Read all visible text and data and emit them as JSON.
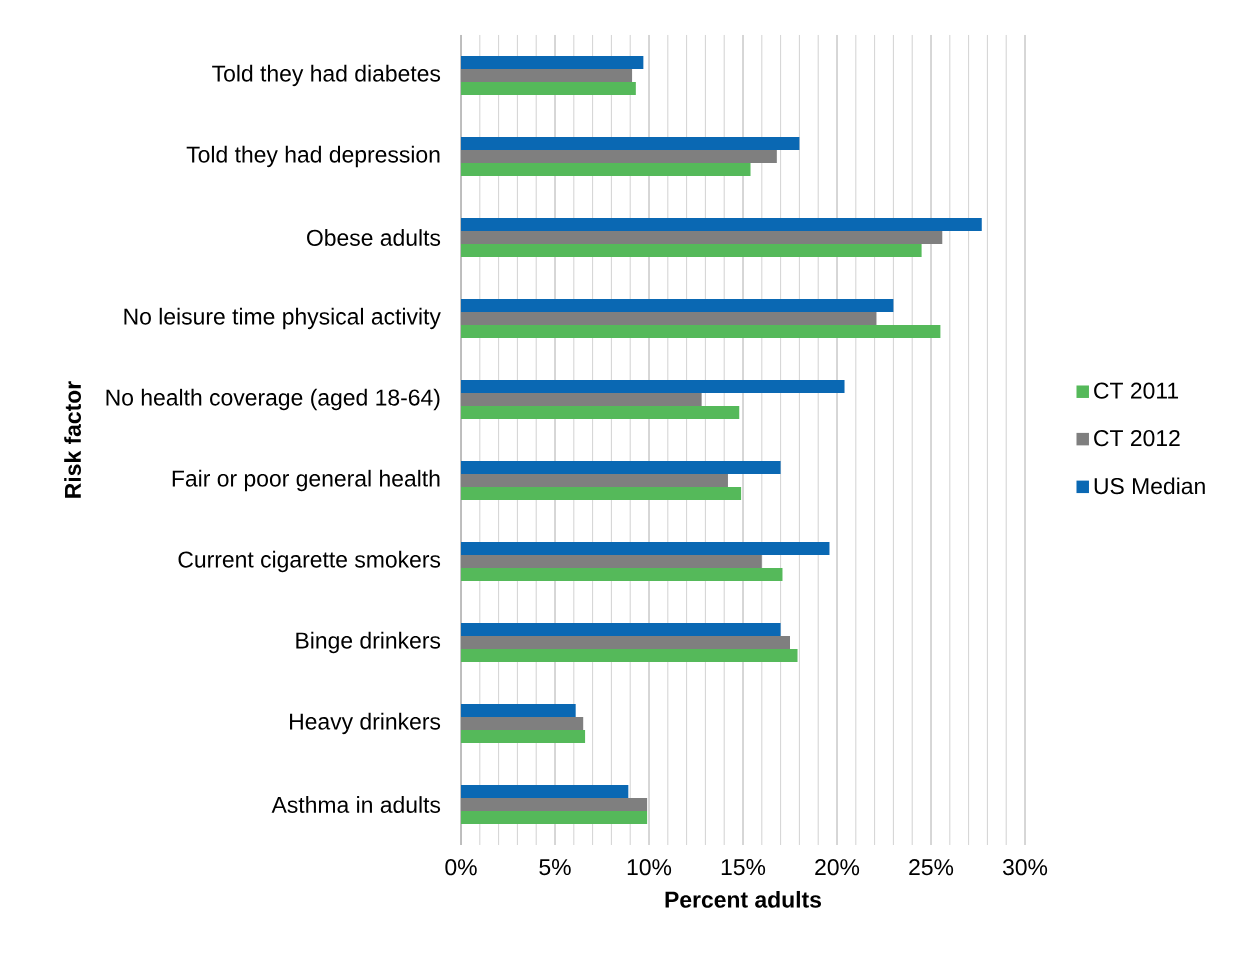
{
  "chart_data": {
    "type": "bar",
    "orientation": "horizontal",
    "xlabel": "Percent adults",
    "ylabel": "Risk factor",
    "categories": [
      "Told they had diabetes",
      "Told they had depression",
      "Obese adults",
      "No leisure time physical activity",
      "No health coverage (aged 18-64)",
      "Fair or poor general health",
      "Current cigarette smokers",
      "Binge drinkers",
      "Heavy drinkers",
      "Asthma in adults"
    ],
    "series": [
      {
        "name": "CT 2011",
        "color": "#55b95a",
        "values": [
          9.3,
          15.4,
          24.5,
          25.5,
          14.8,
          14.9,
          17.1,
          17.9,
          6.6,
          9.9
        ]
      },
      {
        "name": "CT 2012",
        "color": "#7f7f7f",
        "values": [
          9.1,
          16.8,
          25.6,
          22.1,
          12.8,
          14.2,
          16.0,
          17.5,
          6.5,
          9.9
        ]
      },
      {
        "name": "US Median",
        "color": "#0a68b3",
        "values": [
          9.7,
          18.0,
          27.7,
          23.0,
          20.4,
          17.0,
          19.6,
          17.0,
          6.1,
          8.9
        ]
      }
    ],
    "xlim": [
      0,
      30
    ],
    "xticks": [
      {
        "value": 0,
        "label": "0%"
      },
      {
        "value": 5,
        "label": "5%"
      },
      {
        "value": 10,
        "label": "10%"
      },
      {
        "value": 15,
        "label": "15%"
      },
      {
        "value": 20,
        "label": "20%"
      },
      {
        "value": 25,
        "label": "25%"
      },
      {
        "value": 30,
        "label": "30%"
      }
    ],
    "grid": "x",
    "legend": "right"
  }
}
